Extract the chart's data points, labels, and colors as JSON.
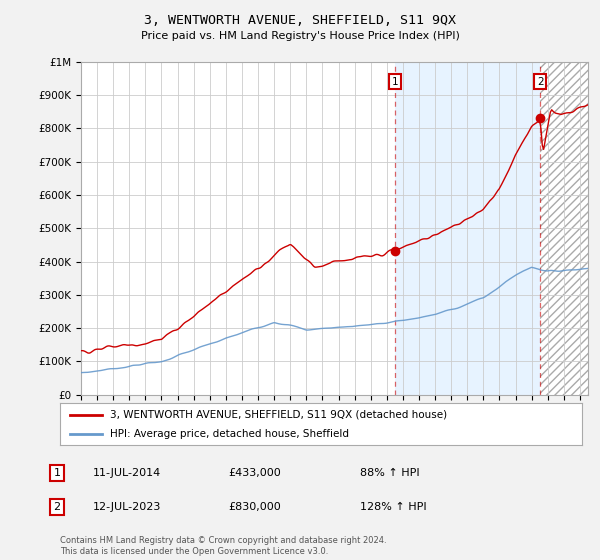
{
  "title": "3, WENTWORTH AVENUE, SHEFFIELD, S11 9QX",
  "subtitle": "Price paid vs. HM Land Registry's House Price Index (HPI)",
  "hpi_label": "HPI: Average price, detached house, Sheffield",
  "property_label": "3, WENTWORTH AVENUE, SHEFFIELD, S11 9QX (detached house)",
  "footer": "Contains HM Land Registry data © Crown copyright and database right 2024.\nThis data is licensed under the Open Government Licence v3.0.",
  "sale1_label": "11-JUL-2014",
  "sale1_price": "£433,000",
  "sale1_hpi": "88% ↑ HPI",
  "sale2_label": "12-JUL-2023",
  "sale2_price": "£830,000",
  "sale2_hpi": "128% ↑ HPI",
  "yticks": [
    0,
    100000,
    200000,
    300000,
    400000,
    500000,
    600000,
    700000,
    800000,
    900000,
    1000000
  ],
  "property_color": "#cc0000",
  "hpi_color": "#6699cc",
  "sale1_x": 2014.53,
  "sale2_x": 2023.53,
  "sale1_y": 433000,
  "sale2_y": 830000,
  "background_color": "#f2f2f2",
  "plot_bg": "#ffffff",
  "grid_color": "#cccccc",
  "shade_color": "#ddeeff",
  "xmin": 1995,
  "xmax": 2026.5
}
